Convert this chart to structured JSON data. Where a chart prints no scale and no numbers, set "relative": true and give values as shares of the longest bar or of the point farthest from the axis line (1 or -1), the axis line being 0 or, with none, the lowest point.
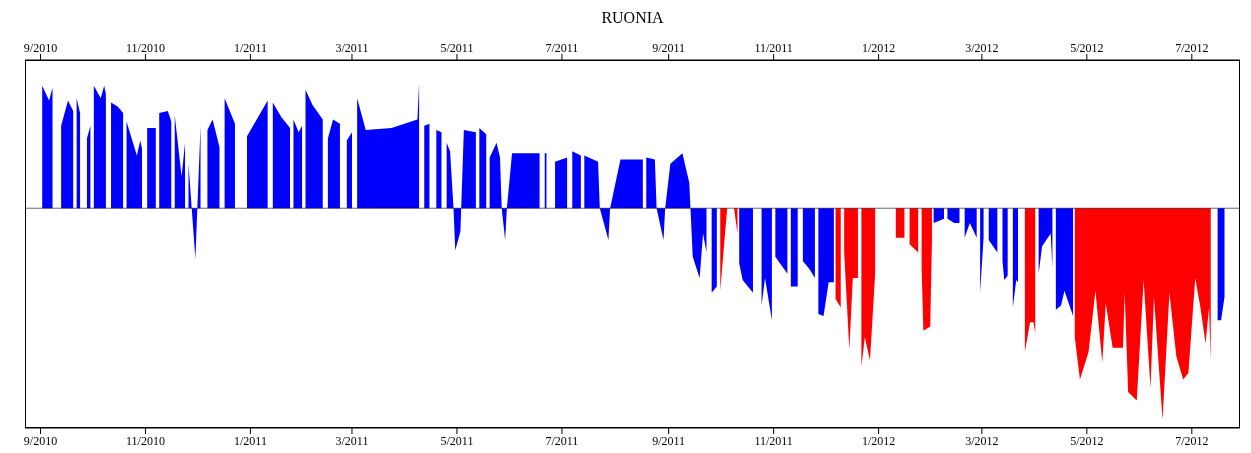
{
  "chart_data": {
    "type": "area",
    "title": "RUONIA",
    "relative": true,
    "xlim": [
      "2010-08-23",
      "2012-07-29"
    ],
    "xticks": [
      {
        "value": "2010-09-01",
        "label": "9/2010"
      },
      {
        "value": "2010-11-01",
        "label": "11/2010"
      },
      {
        "value": "2011-01-01",
        "label": "1/2011"
      },
      {
        "value": "2011-03-01",
        "label": "3/2011"
      },
      {
        "value": "2011-05-01",
        "label": "5/2011"
      },
      {
        "value": "2011-07-01",
        "label": "7/2011"
      },
      {
        "value": "2011-09-01",
        "label": "9/2011"
      },
      {
        "value": "2011-11-01",
        "label": "11/2011"
      },
      {
        "value": "2012-01-01",
        "label": "1/2012"
      },
      {
        "value": "2012-03-01",
        "label": "3/2012"
      },
      {
        "value": "2012-05-01",
        "label": "5/2012"
      },
      {
        "value": "2012-07-01",
        "label": "7/2012"
      }
    ],
    "x2lim": [
      "2010-08-23",
      "2012-07-29"
    ],
    "x2ticks": [
      {
        "value": "2010-09-01",
        "label": "9/2010"
      },
      {
        "value": "2010-11-01",
        "label": "11/2010"
      },
      {
        "value": "2011-01-01",
        "label": "1/2011"
      },
      {
        "value": "2011-03-01",
        "label": "3/2011"
      },
      {
        "value": "2011-05-01",
        "label": "5/2011"
      },
      {
        "value": "2011-07-01",
        "label": "7/2011"
      },
      {
        "value": "2011-09-01",
        "label": "9/2011"
      },
      {
        "value": "2011-11-01",
        "label": "11/2011"
      },
      {
        "value": "2012-01-01",
        "label": "1/2012"
      },
      {
        "value": "2012-03-01",
        "label": "3/2012"
      },
      {
        "value": "2012-05-01",
        "label": "5/2012"
      },
      {
        "value": "2012-07-01",
        "label": "7/2012"
      }
    ],
    "series": [
      {
        "color": "#0000ff",
        "x": [
          "2010-09-02",
          "2010-09-06",
          "2010-09-08",
          "2010-09-09",
          "2010-09-13",
          "2010-09-17",
          "2010-09-20",
          "2010-09-21",
          "2010-09-22",
          "2010-09-24",
          "2010-09-25",
          "2010-09-28",
          "2010-09-30",
          "2010-10-01",
          "2010-10-02",
          "2010-10-06",
          "2010-10-08",
          "2010-10-09",
          "2010-10-11",
          "2010-10-12",
          "2010-10-16",
          "2010-10-19",
          "2010-10-20",
          "2010-10-21",
          "2010-10-27",
          "2010-10-29",
          "2010-10-30",
          "2010-10-31",
          "2010-11-02",
          "2010-11-07",
          "2010-11-08",
          "2010-11-09",
          "2010-11-14",
          "2010-11-16",
          "2010-11-17",
          "2010-11-18",
          "2010-11-22",
          "2010-11-24",
          "2010-11-25",
          "2010-11-26",
          "2010-11-30",
          "2010-12-03",
          "2010-12-04",
          "2010-12-07",
          "2010-12-10",
          "2010-12-14",
          "2010-12-15",
          "2010-12-17",
          "2010-12-23",
          "2010-12-25",
          "2010-12-30",
          "2011-01-11",
          "2011-01-12",
          "2011-01-14",
          "2011-01-19",
          "2011-01-24",
          "2011-01-25",
          "2011-01-26",
          "2011-01-29",
          "2011-01-31",
          "2011-02-01",
          "2011-02-02",
          "2011-02-06",
          "2011-02-12",
          "2011-02-14",
          "2011-02-15",
          "2011-02-18",
          "2011-02-22",
          "2011-02-24",
          "2011-02-26",
          "2011-03-01",
          "2011-03-03",
          "2011-03-04",
          "2011-03-09",
          "2011-03-24",
          "2011-04-08",
          "2011-04-09",
          "2011-04-10",
          "2011-04-12",
          "2011-04-15",
          "2011-04-16",
          "2011-04-19",
          "2011-04-22",
          "2011-04-23",
          "2011-04-25",
          "2011-04-27",
          "2011-04-29",
          "2011-04-30",
          "2011-05-03",
          "2011-05-05",
          "2011-05-12",
          "2011-05-13",
          "2011-05-14",
          "2011-05-18",
          "2011-05-19",
          "2011-05-20",
          "2011-05-24",
          "2011-05-26",
          "2011-05-27",
          "2011-05-29",
          "2011-05-30",
          "2011-06-02",
          "2011-06-18",
          "2011-06-19",
          "2011-06-21",
          "2011-06-22",
          "2011-06-23",
          "2011-06-27",
          "2011-07-04",
          "2011-07-05",
          "2011-07-07",
          "2011-07-12",
          "2011-07-13",
          "2011-07-14",
          "2011-07-22",
          "2011-07-23",
          "2011-07-28",
          "2011-07-29",
          "2011-08-04",
          "2011-08-17",
          "2011-08-18",
          "2011-08-19",
          "2011-08-24",
          "2011-08-25",
          "2011-08-29",
          "2011-08-30",
          "2011-09-02",
          "2011-09-09",
          "2011-09-13",
          "2011-09-15",
          "2011-09-19",
          "2011-09-21",
          "2011-09-23",
          "2011-09-24",
          "2011-09-26",
          "2011-09-29",
          "2011-09-30",
          "2011-10-12",
          "2011-10-14",
          "2011-10-20",
          "2011-10-21",
          "2011-10-25",
          "2011-10-27",
          "2011-10-31",
          "2011-11-01",
          "2011-11-02",
          "2011-11-09",
          "2011-11-10",
          "2011-11-11",
          "2011-11-15",
          "2011-11-16",
          "2011-11-18",
          "2011-11-22",
          "2011-11-25",
          "2011-11-26",
          "2011-11-27",
          "2011-11-30",
          "2011-12-03",
          "2011-12-06",
          "2011-12-07",
          "2012-02-02",
          "2012-02-08",
          "2012-02-09",
          "2012-02-10",
          "2012-02-14",
          "2012-02-17",
          "2012-02-18",
          "2012-02-20",
          "2012-02-23",
          "2012-02-27",
          "2012-02-28",
          "2012-02-29",
          "2012-03-02",
          "2012-03-03",
          "2012-03-05",
          "2012-03-10",
          "2012-03-11",
          "2012-03-13",
          "2012-03-14",
          "2012-03-16",
          "2012-03-17",
          "2012-03-19",
          "2012-03-21",
          "2012-03-22",
          "2012-03-23",
          "2012-04-03",
          "2012-04-05",
          "2012-04-10",
          "2012-04-11",
          "2012-04-12",
          "2012-04-13",
          "2012-04-16",
          "2012-04-18",
          "2012-04-23",
          "2012-04-24",
          "2012-07-16",
          "2012-07-18",
          "2012-07-20"
        ],
        "values": [
          0.58,
          0.51,
          0.57,
          null,
          0.39,
          0.51,
          0.46,
          null,
          0.52,
          0.45,
          null,
          0.33,
          0.39,
          null,
          0.58,
          0.52,
          0.58,
          0.54,
          null,
          0.5,
          0.48,
          0.45,
          null,
          0.41,
          0.25,
          0.32,
          0.28,
          null,
          0.38,
          0.38,
          null,
          0.45,
          0.46,
          0.41,
          null,
          0.44,
          0.15,
          0.31,
          null,
          0.21,
          -0.24,
          0.39,
          null,
          0.37,
          0.42,
          0.29,
          null,
          0.52,
          0.4,
          null,
          0.34,
          0.51,
          null,
          0.5,
          0.43,
          0.38,
          null,
          0.42,
          0.36,
          0.39,
          null,
          0.56,
          0.49,
          0.42,
          null,
          0.33,
          0.42,
          0.4,
          null,
          0.32,
          0.36,
          null,
          0.52,
          0.37,
          0.38,
          0.42,
          0.59,
          null,
          0.39,
          0.4,
          null,
          0.37,
          0.36,
          null,
          0.31,
          0.27,
          0,
          -0.2,
          -0.11,
          0.37,
          0.36,
          null,
          0.38,
          0.35,
          null,
          0.24,
          0.31,
          0.24,
          0,
          -0.15,
          0,
          0.26,
          0.26,
          null,
          0.26,
          0.26,
          null,
          0.22,
          0.24,
          null,
          0.27,
          0.25,
          null,
          0.25,
          0.22,
          0,
          -0.15,
          0,
          0.23,
          0.23,
          null,
          0.24,
          0.23,
          0,
          -0.15,
          0,
          0.21,
          0.26,
          0.12,
          -0.23,
          -0.33,
          -0.12,
          -0.21,
          null,
          -0.4,
          -0.37,
          null,
          -0.26,
          -0.34,
          -0.4,
          null,
          -0.46,
          -0.33,
          -0.53,
          null,
          -0.23,
          -0.31,
          null,
          -0.37,
          -0.37,
          null,
          -0.25,
          -0.29,
          -0.33,
          null,
          -0.5,
          -0.51,
          -0.35,
          -0.35,
          null,
          -0.07,
          -0.05,
          null,
          -0.05,
          -0.07,
          -0.07,
          null,
          -0.14,
          -0.07,
          -0.14,
          null,
          -0.4,
          -0.14,
          null,
          -0.15,
          -0.21,
          null,
          -0.25,
          -0.34,
          -0.32,
          null,
          -0.47,
          -0.34,
          -0.35,
          null,
          -0.31,
          -0.18,
          -0.12,
          -0.28,
          null,
          -0.48,
          -0.46,
          -0.39,
          -0.51,
          null,
          -0.53,
          -0.53,
          -0.42
        ]
      },
      {
        "color": "#ff0000",
        "x": [
          "2011-10-01",
          "2011-10-05",
          "2011-10-06",
          "2011-10-09",
          "2011-10-11",
          "2011-10-12",
          "2011-12-07",
          "2011-12-10",
          "2011-12-11",
          "2011-12-12",
          "2011-12-15",
          "2011-12-17",
          "2011-12-20",
          "2011-12-21",
          "2011-12-22",
          "2011-12-24",
          "2011-12-27",
          "2011-12-30",
          "2011-12-31",
          "2012-01-11",
          "2012-01-16",
          "2012-01-17",
          "2012-01-19",
          "2012-01-24",
          "2012-01-25",
          "2012-01-26",
          "2012-01-27",
          "2012-01-31",
          "2012-02-01",
          "2012-02-02",
          "2012-03-26",
          "2012-03-29",
          "2012-03-31",
          "2012-04-01",
          "2012-04-02",
          "2012-04-24",
          "2012-04-27",
          "2012-05-02",
          "2012-05-06",
          "2012-05-10",
          "2012-05-12",
          "2012-05-16",
          "2012-05-22",
          "2012-05-23",
          "2012-05-25",
          "2012-05-30",
          "2012-06-03",
          "2012-06-07",
          "2012-06-09",
          "2012-06-14",
          "2012-06-18",
          "2012-06-22",
          "2012-06-26",
          "2012-06-29",
          "2012-07-03",
          "2012-07-06",
          "2012-07-09",
          "2012-07-11",
          "2012-07-12"
        ],
        "values": [
          -0.39,
          0,
          null,
          0,
          -0.12,
          null,
          -0.43,
          -0.47,
          null,
          -0.21,
          -0.67,
          -0.33,
          -0.33,
          null,
          -0.75,
          -0.61,
          -0.72,
          -0.31,
          null,
          -0.14,
          -0.14,
          null,
          -0.17,
          -0.21,
          null,
          -0.28,
          -0.58,
          -0.56,
          -0.15,
          null,
          -0.68,
          -0.54,
          -0.54,
          -0.59,
          null,
          -0.61,
          -0.81,
          -0.68,
          -0.39,
          -0.73,
          -0.45,
          -0.66,
          -0.66,
          -0.4,
          -0.87,
          -0.91,
          -0.34,
          -0.85,
          -0.42,
          -1,
          -0.4,
          -0.7,
          -0.81,
          -0.78,
          -0.33,
          -0.47,
          -0.64,
          -0.47,
          -0.72
        ]
      }
    ]
  }
}
